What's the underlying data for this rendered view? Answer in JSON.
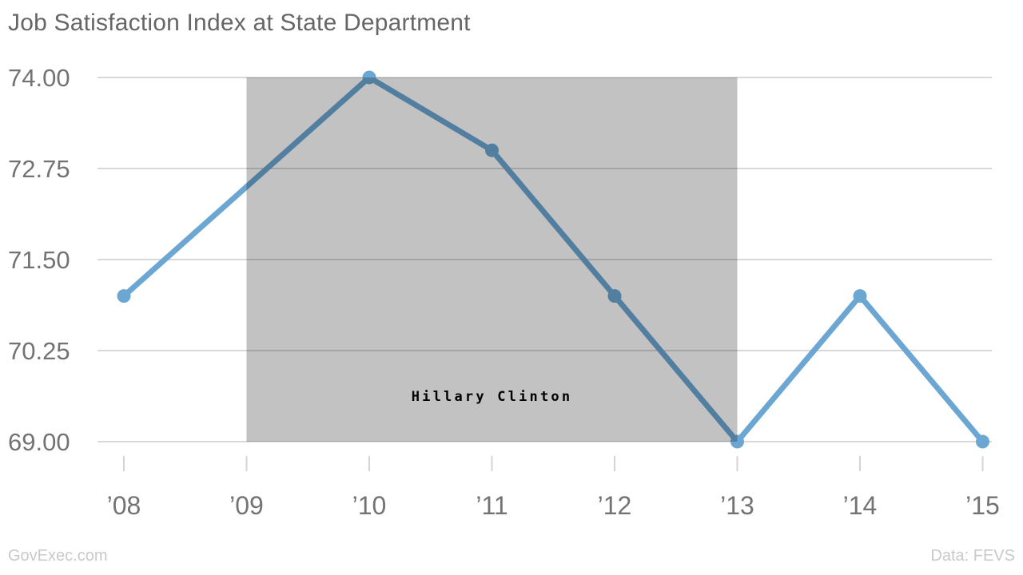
{
  "header": {
    "title": "Job Satisfaction Index at State Department"
  },
  "footer": {
    "source_left": "GovExec.com",
    "source_right": "Data: FEVS"
  },
  "chart_data": {
    "type": "line",
    "title": "Job Satisfaction Index at State Department",
    "categories": [
      "’08",
      "’09",
      "’10",
      "’11",
      "’12",
      "’13",
      "’14",
      "’15"
    ],
    "series": [
      {
        "name": "Job Satisfaction Index",
        "values": [
          71.0,
          null,
          74.0,
          73.0,
          71.0,
          69.0,
          71.0,
          69.0
        ]
      }
    ],
    "y_ticks": [
      {
        "label": "74.00",
        "value": 74.0
      },
      {
        "label": "72.75",
        "value": 72.75
      },
      {
        "label": "71.50",
        "value": 71.5
      },
      {
        "label": "70.25",
        "value": 70.25
      },
      {
        "label": "69.00",
        "value": 69.0
      }
    ],
    "ylim": [
      69.0,
      74.0
    ],
    "xlabel": "",
    "ylabel": "",
    "grid": true,
    "legend": false,
    "annotation_band": {
      "from_category": "’09",
      "to_category": "’13",
      "label": "Hillary Clinton"
    },
    "colors": {
      "line": "#6CA6D3",
      "marker": "#6CA6D3",
      "band": "#C2C2C2",
      "grid": "#D8D8D8",
      "tick": "#D4D4D4",
      "title": "#666666",
      "axis_label": "#737373",
      "band_label": "#000000",
      "footer": "#C9C9C9",
      "background": "#FFFFFF"
    }
  }
}
